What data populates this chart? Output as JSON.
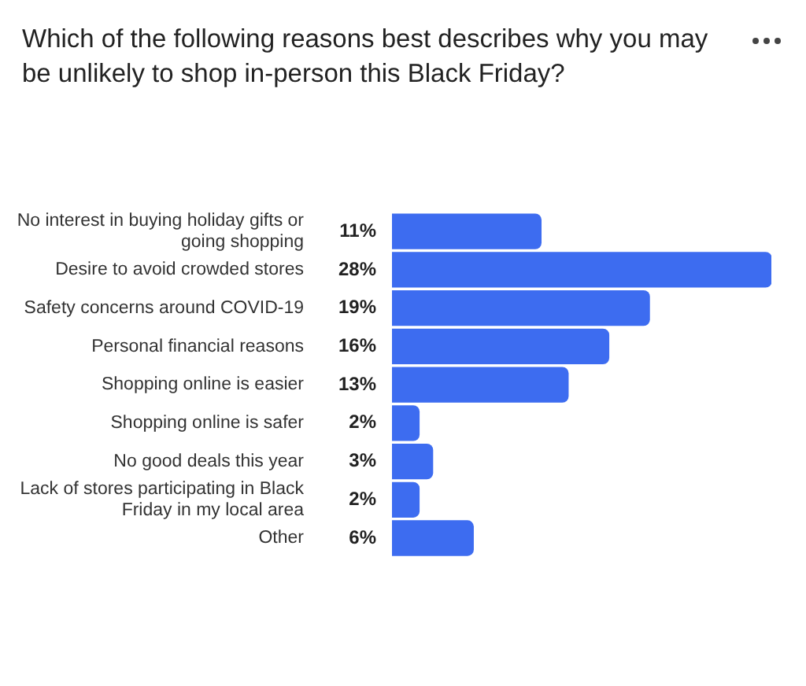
{
  "chart_data": {
    "type": "bar",
    "orientation": "horizontal",
    "title": "Which of the following reasons best describes why you may be unlikely to shop in-person this Black Friday?",
    "categories": [
      "No interest in buying holiday gifts or going shopping",
      "Desire to avoid crowded stores",
      "Safety concerns around COVID-19",
      "Personal financial reasons",
      "Shopping online is easier",
      "Shopping online is safer",
      "No good deals this year",
      "Lack of stores participating in Black Friday in my local area",
      "Other"
    ],
    "values": [
      11,
      28,
      19,
      16,
      13,
      2,
      3,
      2,
      6
    ],
    "value_labels": [
      "11%",
      "28%",
      "19%",
      "16%",
      "13%",
      "2%",
      "3%",
      "2%",
      "6%"
    ],
    "color": "#3d6cf0",
    "grid": false,
    "legend": false
  }
}
